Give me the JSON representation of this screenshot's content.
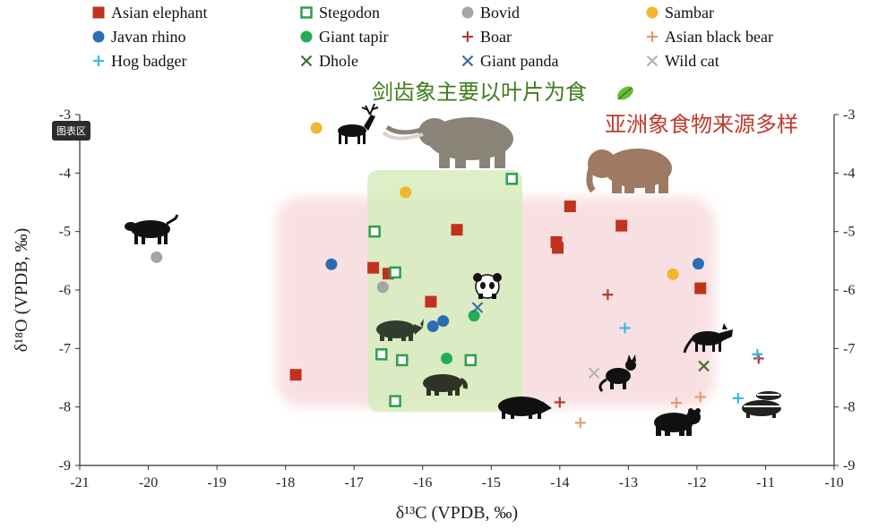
{
  "tag": "图表区",
  "annotations": {
    "green": "剑齿象主要以叶片为食",
    "red": "亚洲象食物来源多样"
  },
  "chart_data": {
    "type": "scatter",
    "xlabel": "δ¹³C (VPDB, ‰)",
    "ylabel": "δ¹⁸O (VPDB, ‰)",
    "xlim": [
      -21,
      -10
    ],
    "ylim": [
      -9,
      -3
    ],
    "xticks": [
      "-21",
      "-20",
      "-19",
      "-18",
      "-17",
      "-16",
      "-15",
      "-14",
      "-13",
      "-12",
      "-11",
      "-10"
    ],
    "yticks": [
      "-3",
      "-4",
      "-5",
      "-6",
      "-7",
      "-8",
      "-9"
    ],
    "legend": "top",
    "series": [
      {
        "name": "Asian elephant",
        "marker": "square",
        "color": "#c0321d",
        "points": [
          [
            -17.85,
            -7.45
          ],
          [
            -16.72,
            -5.62
          ],
          [
            -16.5,
            -5.72
          ],
          [
            -15.5,
            -4.97
          ],
          [
            -15.88,
            -6.2
          ],
          [
            -14.05,
            -5.18
          ],
          [
            -14.03,
            -5.28
          ],
          [
            -13.85,
            -4.57
          ],
          [
            -13.1,
            -4.9
          ],
          [
            -11.95,
            -5.97
          ]
        ]
      },
      {
        "name": "Stegodon",
        "marker": "open-square",
        "color": "#2f9e4f",
        "points": [
          [
            -16.7,
            -5.0
          ],
          [
            -16.4,
            -5.7
          ],
          [
            -16.6,
            -7.1
          ],
          [
            -16.3,
            -7.2
          ],
          [
            -16.4,
            -7.9
          ],
          [
            -15.3,
            -7.2
          ],
          [
            -14.7,
            -4.1
          ]
        ]
      },
      {
        "name": "Bovid",
        "marker": "circle",
        "color": "#a5a5a5",
        "points": [
          [
            -19.88,
            -5.44
          ],
          [
            -16.58,
            -5.95
          ]
        ]
      },
      {
        "name": "Sambar",
        "marker": "circle",
        "color": "#f2b52b",
        "points": [
          [
            -17.55,
            -3.23
          ],
          [
            -16.25,
            -4.33
          ],
          [
            -12.35,
            -5.73
          ]
        ]
      },
      {
        "name": "Javan rhino",
        "marker": "circle",
        "color": "#2a6db5",
        "points": [
          [
            -17.33,
            -5.56
          ],
          [
            -15.85,
            -6.62
          ],
          [
            -15.7,
            -6.53
          ],
          [
            -11.98,
            -5.55
          ]
        ]
      },
      {
        "name": "Giant tapir",
        "marker": "circle",
        "color": "#23ad55",
        "points": [
          [
            -15.25,
            -6.44
          ],
          [
            -15.65,
            -7.17
          ]
        ]
      },
      {
        "name": "Boar",
        "marker": "plus",
        "color": "#b33a2a",
        "points": [
          [
            -13.3,
            -6.08
          ],
          [
            -14.0,
            -7.92
          ],
          [
            -11.1,
            -7.17
          ]
        ]
      },
      {
        "name": "Asian black bear",
        "marker": "plus",
        "color": "#e89a66",
        "points": [
          [
            -13.7,
            -8.27
          ],
          [
            -12.3,
            -7.93
          ],
          [
            -11.95,
            -7.83
          ]
        ]
      },
      {
        "name": "Hog badger",
        "marker": "plus",
        "color": "#3cb8e0",
        "points": [
          [
            -13.05,
            -6.65
          ],
          [
            -11.4,
            -7.85
          ],
          [
            -11.12,
            -7.1
          ]
        ]
      },
      {
        "name": "Dhole",
        "marker": "x",
        "color": "#4a6e30",
        "points": [
          [
            -11.9,
            -7.3
          ]
        ]
      },
      {
        "name": "Giant panda",
        "marker": "x",
        "color": "#3b6ea5",
        "points": [
          [
            -15.2,
            -6.3
          ]
        ]
      },
      {
        "name": "Wild cat",
        "marker": "x",
        "color": "#b5b5b5",
        "points": [
          [
            -13.5,
            -7.42
          ]
        ]
      }
    ]
  }
}
